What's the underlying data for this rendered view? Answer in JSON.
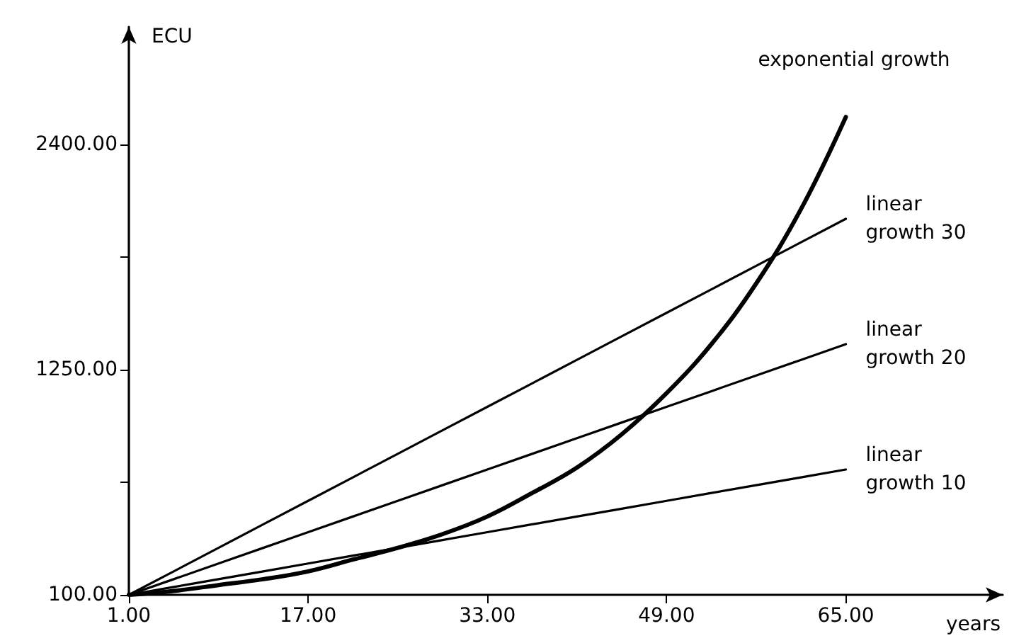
{
  "chart_data": {
    "type": "line",
    "xlabel": "years",
    "ylabel": "ECU",
    "x": [
      1,
      5,
      9,
      13,
      17,
      21,
      25,
      29,
      33,
      37,
      41,
      45,
      49,
      53,
      57,
      61,
      65
    ],
    "series": [
      {
        "name": "exponential growth",
        "color": "#000000",
        "values": [
          100,
          120,
          150,
          180,
          220,
          280,
          340,
          410,
          500,
          620,
          750,
          920,
          1130,
          1380,
          1690,
          2070,
          2540
        ]
      },
      {
        "name": "linear growth 30",
        "color": "#000000",
        "values": [
          100,
          220,
          340,
          460,
          580,
          700,
          820,
          940,
          1060,
          1180,
          1300,
          1420,
          1540,
          1660,
          1780,
          1900,
          2020
        ]
      },
      {
        "name": "linear growth 20",
        "color": "#000000",
        "values": [
          100,
          180,
          260,
          340,
          420,
          500,
          580,
          660,
          740,
          820,
          900,
          980,
          1060,
          1140,
          1220,
          1300,
          1380
        ]
      },
      {
        "name": "linear growth 10",
        "color": "#000000",
        "values": [
          100,
          140,
          180,
          220,
          260,
          300,
          340,
          380,
          420,
          460,
          500,
          540,
          580,
          620,
          660,
          700,
          740
        ]
      }
    ],
    "xlim": [
      1,
      79
    ],
    "ylim": [
      100,
      3000
    ],
    "xticks": [
      {
        "value": 1,
        "label": "1.00"
      },
      {
        "value": 17,
        "label": "17.00"
      },
      {
        "value": 33,
        "label": "33.00"
      },
      {
        "value": 49,
        "label": "49.00"
      },
      {
        "value": 65,
        "label": "65.00"
      }
    ],
    "yticks": [
      {
        "value": 100,
        "label": "100.00"
      },
      {
        "value": 675,
        "label": null
      },
      {
        "value": 1250,
        "label": "1250.00"
      },
      {
        "value": 1825,
        "label": null
      },
      {
        "value": 2400,
        "label": "2400.00"
      }
    ],
    "grid": false,
    "legend": false,
    "marker": "none",
    "line_style": "solid"
  }
}
